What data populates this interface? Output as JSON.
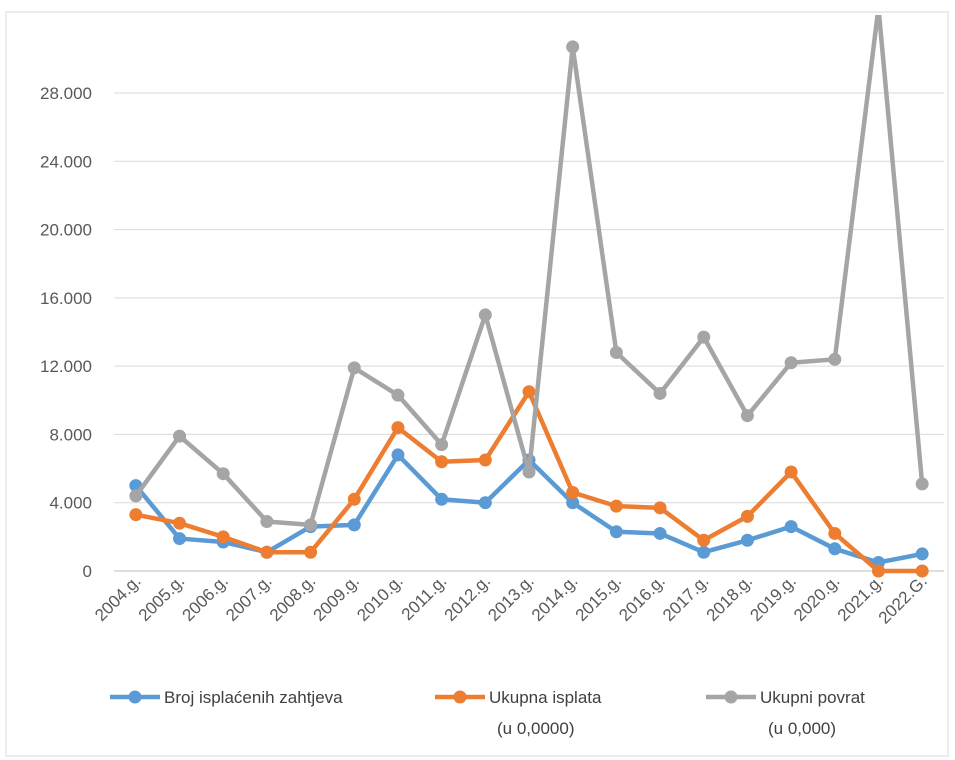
{
  "chart_data": {
    "type": "line",
    "categories": [
      "2004.g.",
      "2005.g.",
      "2006.g.",
      "2007.g.",
      "2008.g.",
      "2009.g.",
      "2010.g.",
      "2011.g.",
      "2012.g.",
      "2013.g.",
      "2014.g.",
      "2015.g.",
      "2016.g.",
      "2017.g.",
      "2018.g.",
      "2019.g.",
      "2020.g.",
      "2021.g.",
      "2022.G."
    ],
    "ylim": [
      0,
      30000
    ],
    "yticks": [
      0,
      4000,
      8000,
      12000,
      16000,
      20000,
      24000,
      28000
    ],
    "ytick_labels": [
      "0",
      "4.000",
      "8.000",
      "12.000",
      "16.000",
      "20.000",
      "24.000",
      "28.000"
    ],
    "grid": true,
    "legend_position": "bottom",
    "series": [
      {
        "name": "Broj isplaćenih  zahtjeva",
        "name_line2": "",
        "color": "#5B9BD5",
        "values": [
          5000,
          1900,
          1700,
          1100,
          2600,
          2700,
          6800,
          4200,
          4000,
          6500,
          4000,
          2300,
          2200,
          1100,
          1800,
          2600,
          1300,
          500,
          1000
        ]
      },
      {
        "name": "Ukupna isplata",
        "name_line2": "(u 0,0000)",
        "color": "#ED7D31",
        "values": [
          3300,
          2800,
          2000,
          1100,
          1100,
          4200,
          8400,
          6400,
          6500,
          10500,
          4600,
          3800,
          3700,
          1800,
          3200,
          5800,
          2200,
          0,
          0
        ]
      },
      {
        "name": "Ukupni povrat",
        "name_line2": "(u 0,000)",
        "color": "#A5A5A5",
        "values": [
          4400,
          7900,
          5700,
          2900,
          2700,
          11900,
          10300,
          7400,
          15000,
          5800,
          30700,
          12800,
          10400,
          13700,
          9100,
          12200,
          12400,
          33000,
          5100
        ]
      }
    ]
  }
}
